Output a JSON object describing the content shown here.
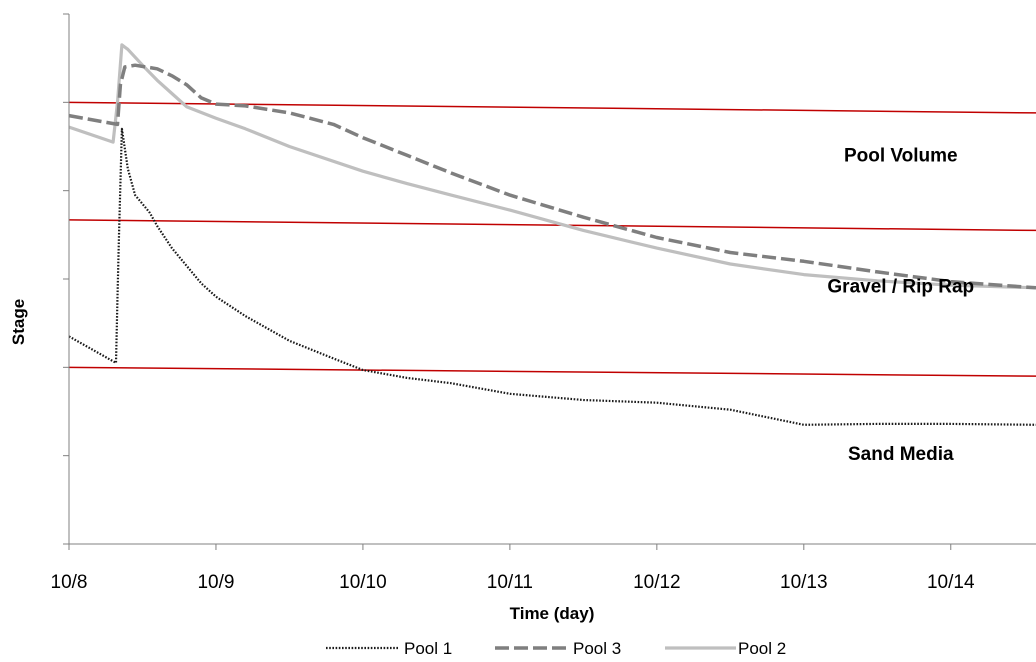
{
  "chart_data": {
    "type": "line",
    "title": "",
    "xlabel": "Time (day)",
    "ylabel": "Stage",
    "x_ticks": [
      "10/8",
      "10/9",
      "10/10",
      "10/11",
      "10/12",
      "10/13",
      "10/14"
    ],
    "xlim": [
      0,
      6.58
    ],
    "ylim": [
      0,
      6
    ],
    "y_tick_values": [
      0,
      1,
      2,
      3,
      4,
      5,
      6
    ],
    "y_tick_labels_shown": false,
    "grid": false,
    "legend_position": "bottom",
    "series": [
      {
        "name": "Pool 1",
        "style": "dotted",
        "color": "#1a1a1a",
        "x": [
          0,
          0.32,
          0.33,
          0.34,
          0.36,
          0.4,
          0.45,
          0.5,
          0.55,
          0.6,
          0.7,
          0.8,
          0.9,
          1.0,
          1.2,
          1.5,
          1.8,
          2.0,
          2.3,
          2.6,
          3.0,
          3.5,
          4.0,
          4.5,
          5.0,
          5.5,
          6.0,
          6.58
        ],
        "y": [
          2.35,
          2.05,
          2.8,
          3.5,
          4.7,
          4.25,
          3.95,
          3.85,
          3.75,
          3.6,
          3.35,
          3.15,
          2.95,
          2.8,
          2.58,
          2.3,
          2.1,
          1.97,
          1.88,
          1.82,
          1.7,
          1.63,
          1.6,
          1.52,
          1.35,
          1.36,
          1.36,
          1.35
        ]
      },
      {
        "name": "Pool 3",
        "style": "dashed",
        "color": "#7f7f7f",
        "x": [
          0,
          0.33,
          0.35,
          0.38,
          0.45,
          0.6,
          0.7,
          0.8,
          0.9,
          1.0,
          1.1,
          1.2,
          1.5,
          1.8,
          2.0,
          2.3,
          2.6,
          3.0,
          3.5,
          4.0,
          4.5,
          5.0,
          5.5,
          6.0,
          6.58
        ],
        "y": [
          4.85,
          4.75,
          5.2,
          5.4,
          5.42,
          5.38,
          5.3,
          5.2,
          5.05,
          4.98,
          4.97,
          4.96,
          4.88,
          4.75,
          4.6,
          4.4,
          4.2,
          3.95,
          3.7,
          3.47,
          3.3,
          3.2,
          3.08,
          2.97,
          2.9
        ]
      },
      {
        "name": "Pool 2",
        "style": "solid",
        "color": "#bfbfbf",
        "x": [
          0,
          0.3,
          0.33,
          0.36,
          0.4,
          0.5,
          0.6,
          0.7,
          0.8,
          1.0,
          1.2,
          1.5,
          2.0,
          2.3,
          2.6,
          3.0,
          3.5,
          4.0,
          4.5,
          5.0,
          5.5,
          6.0,
          6.58
        ],
        "y": [
          4.72,
          4.55,
          5.0,
          5.65,
          5.6,
          5.42,
          5.25,
          5.1,
          4.95,
          4.82,
          4.7,
          4.5,
          4.22,
          4.08,
          3.95,
          3.78,
          3.55,
          3.35,
          3.17,
          3.05,
          2.98,
          2.93,
          2.9
        ]
      }
    ],
    "threshold_lines": {
      "color": "#c00000",
      "lines": [
        {
          "x": [
            0,
            6.58
          ],
          "y": [
            5.0,
            4.88
          ]
        },
        {
          "x": [
            0,
            6.58
          ],
          "y": [
            3.67,
            3.55
          ]
        },
        {
          "x": [
            0,
            6.58
          ],
          "y": [
            2.0,
            1.9
          ]
        }
      ]
    },
    "annotations": [
      {
        "text": "Pool Volume",
        "x": 5.66,
        "y": 4.33
      },
      {
        "text": "Gravel / Rip Rap",
        "x": 5.66,
        "y": 2.85
      },
      {
        "text": "Sand Media",
        "x": 5.66,
        "y": 0.95
      }
    ]
  }
}
